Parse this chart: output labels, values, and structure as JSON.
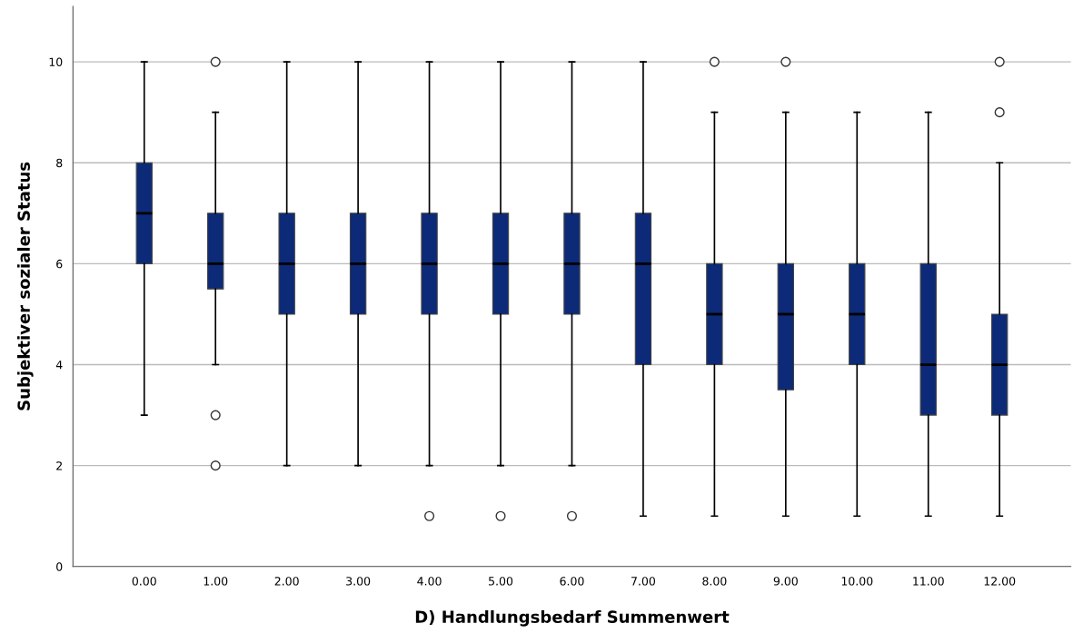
{
  "chart_data": {
    "type": "box",
    "xlabel": "D) Handlungsbedarf Summenwert",
    "ylabel": "Subjektiver sozialer Status",
    "categories": [
      "0.00",
      "1.00",
      "2.00",
      "3.00",
      "4.00",
      "5.00",
      "6.00",
      "7.00",
      "8.00",
      "9.00",
      "10.00",
      "11.00",
      "12.00"
    ],
    "color": "#0c2a78",
    "boxes": [
      {
        "low": 3,
        "q1": 6,
        "median": 7,
        "q3": 8,
        "high": 10
      },
      {
        "low": 4,
        "q1": 5.5,
        "median": 6,
        "q3": 7,
        "high": 9,
        "outliers": [
          10,
          3,
          2
        ]
      },
      {
        "low": 2,
        "q1": 5,
        "median": 6,
        "q3": 7,
        "high": 10
      },
      {
        "low": 2,
        "q1": 5,
        "median": 6,
        "q3": 7,
        "high": 10
      },
      {
        "low": 2,
        "q1": 5,
        "median": 6,
        "q3": 7,
        "high": 10,
        "outliers": [
          1
        ]
      },
      {
        "low": 2,
        "q1": 5,
        "median": 6,
        "q3": 7,
        "high": 10,
        "outliers": [
          1
        ]
      },
      {
        "low": 2,
        "q1": 5,
        "median": 6,
        "q3": 7,
        "high": 10,
        "outliers": [
          1
        ]
      },
      {
        "low": 1,
        "q1": 4,
        "median": 6,
        "q3": 7,
        "high": 10
      },
      {
        "low": 1,
        "q1": 4,
        "median": 5,
        "q3": 6,
        "high": 9,
        "outliers": [
          10
        ]
      },
      {
        "low": 1,
        "q1": 3.5,
        "median": 5,
        "q3": 6,
        "high": 9,
        "outliers": [
          10
        ]
      },
      {
        "low": 1,
        "q1": 4,
        "median": 5,
        "q3": 6,
        "high": 9
      },
      {
        "low": 1,
        "q1": 3,
        "median": 4,
        "q3": 6,
        "high": 9
      },
      {
        "low": 1,
        "q1": 3,
        "median": 4,
        "q3": 5,
        "high": 8,
        "outliers": [
          9,
          10
        ]
      }
    ],
    "ylim": [
      0,
      11.1
    ],
    "yticks": [
      0,
      2,
      4,
      6,
      8,
      10
    ],
    "grid": "y"
  }
}
